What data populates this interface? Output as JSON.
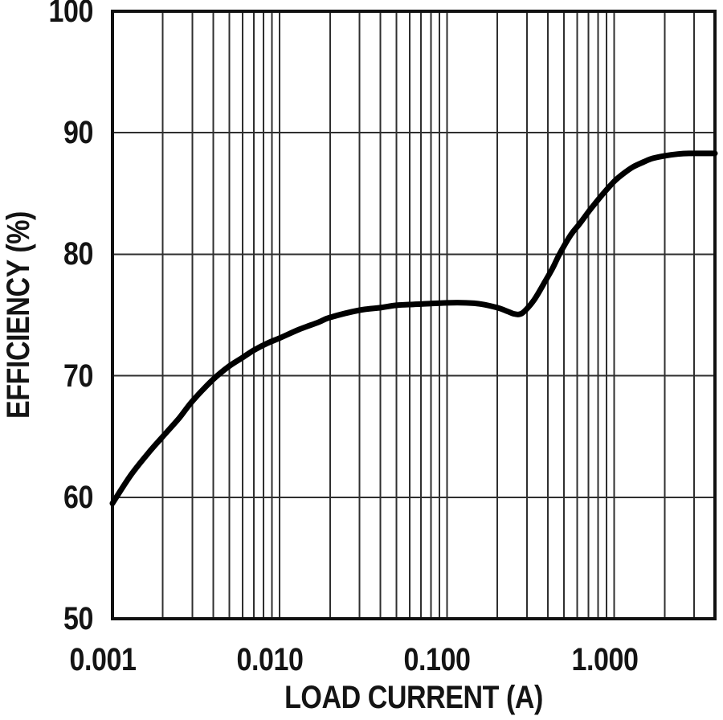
{
  "figure": {
    "background": "#ffffff",
    "border_color": "#111111",
    "grid_color": "#2f2f2f",
    "curve_color": "#000000",
    "text_color": "#141414"
  },
  "chart_data": {
    "type": "line",
    "title": "",
    "xlabel": "LOAD CURRENT (A)",
    "ylabel": "EFFICIENCY (%)",
    "x_scale": "log",
    "y_scale": "linear",
    "xlim": [
      0.001,
      4
    ],
    "ylim": [
      50,
      100
    ],
    "grid": true,
    "legend": false,
    "x_ticks": [
      {
        "value": 0.001,
        "label": "0.001"
      },
      {
        "value": 0.01,
        "label": "0.010"
      },
      {
        "value": 0.1,
        "label": "0.100"
      },
      {
        "value": 1.0,
        "label": "1.000"
      }
    ],
    "y_ticks": [
      {
        "value": 50,
        "label": "50"
      },
      {
        "value": 60,
        "label": "60"
      },
      {
        "value": 70,
        "label": "70"
      },
      {
        "value": 80,
        "label": "80"
      },
      {
        "value": 90,
        "label": "90"
      },
      {
        "value": 100,
        "label": "100"
      }
    ],
    "series": [
      {
        "name": "efficiency",
        "points": [
          [
            0.001,
            59.5
          ],
          [
            0.0013,
            61.9
          ],
          [
            0.0017,
            63.9
          ],
          [
            0.002,
            65.0
          ],
          [
            0.0025,
            66.5
          ],
          [
            0.003,
            67.9
          ],
          [
            0.004,
            69.7
          ],
          [
            0.005,
            70.8
          ],
          [
            0.006,
            71.5
          ],
          [
            0.007,
            72.1
          ],
          [
            0.0085,
            72.7
          ],
          [
            0.01,
            73.1
          ],
          [
            0.013,
            73.8
          ],
          [
            0.017,
            74.4
          ],
          [
            0.02,
            74.8
          ],
          [
            0.03,
            75.4
          ],
          [
            0.04,
            75.6
          ],
          [
            0.05,
            75.8
          ],
          [
            0.07,
            75.9
          ],
          [
            0.1,
            76.0
          ],
          [
            0.13,
            76.0
          ],
          [
            0.16,
            75.9
          ],
          [
            0.2,
            75.6
          ],
          [
            0.23,
            75.3
          ],
          [
            0.25,
            75.1
          ],
          [
            0.27,
            75.05
          ],
          [
            0.29,
            75.3
          ],
          [
            0.33,
            76.2
          ],
          [
            0.38,
            77.6
          ],
          [
            0.43,
            78.9
          ],
          [
            0.47,
            80.0
          ],
          [
            0.55,
            81.6
          ],
          [
            0.62,
            82.5
          ],
          [
            0.72,
            83.7
          ],
          [
            0.86,
            85.0
          ],
          [
            1.0,
            86.0
          ],
          [
            1.15,
            86.7
          ],
          [
            1.3,
            87.2
          ],
          [
            1.5,
            87.6
          ],
          [
            1.7,
            87.9
          ],
          [
            2.0,
            88.1
          ],
          [
            2.4,
            88.25
          ],
          [
            2.8,
            88.3
          ],
          [
            3.3,
            88.3
          ],
          [
            4.0,
            88.3
          ]
        ]
      }
    ]
  }
}
